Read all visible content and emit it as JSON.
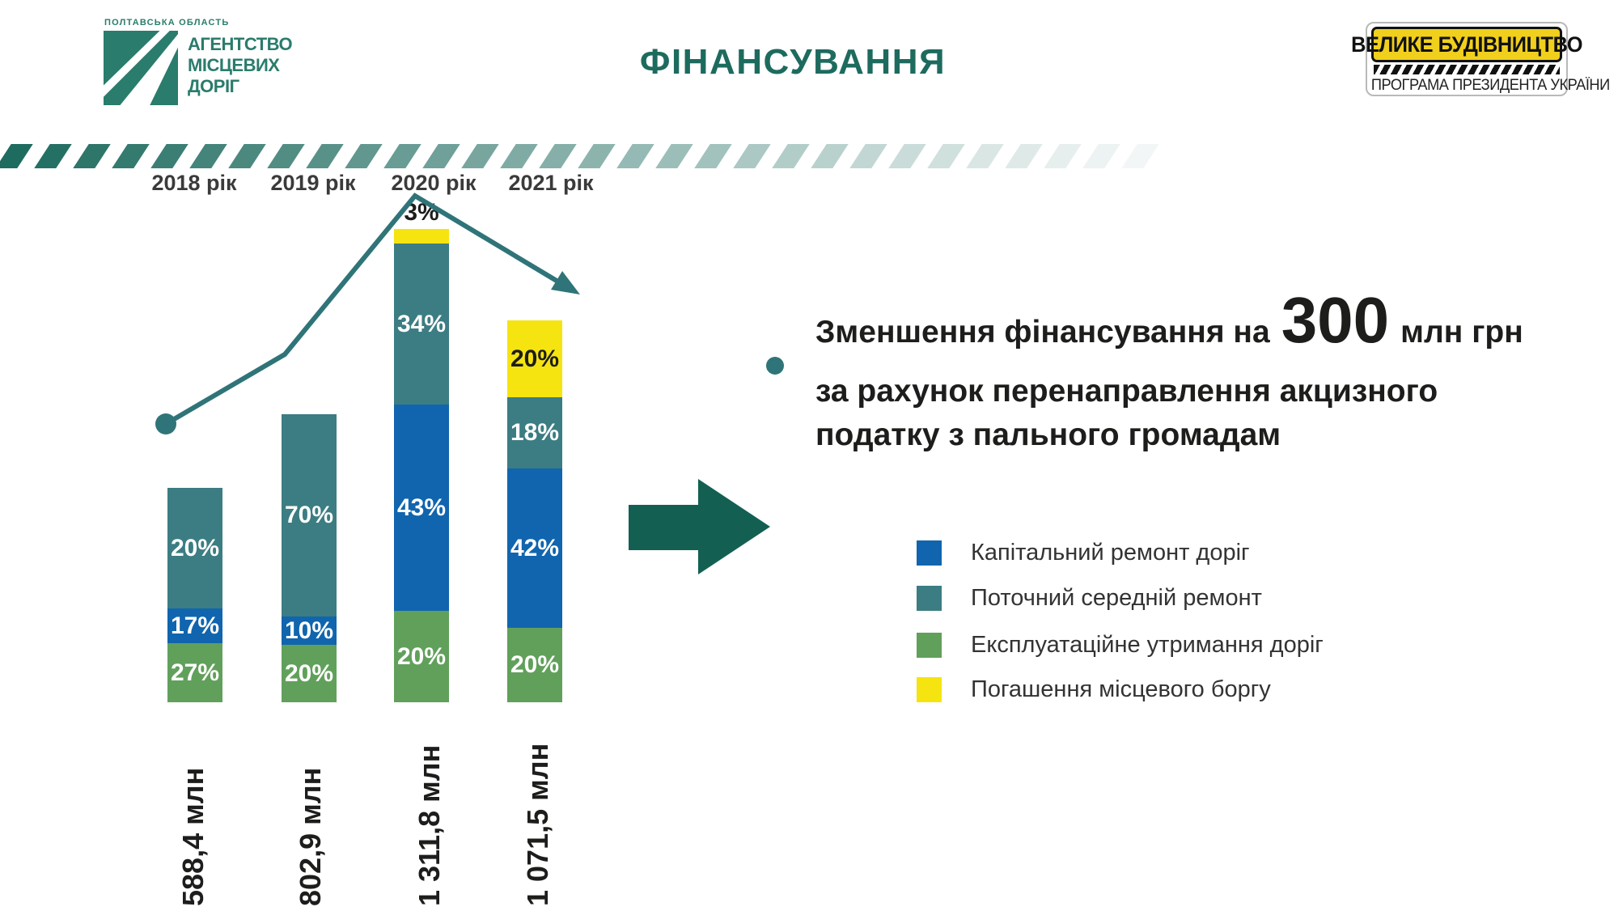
{
  "colors": {
    "title": "#1d6b5e",
    "logo": "#2a7c6c",
    "trend": "#2f7478",
    "arrow": "#136053",
    "stripe": "#1e6b5f",
    "badge_yellow": "#f0d01d"
  },
  "header": {
    "region_label": "ПОЛТАВСЬКА ОБЛАСТЬ",
    "agency_lines": [
      "АГЕНТСТВО",
      "МІСЦЕВИХ",
      "ДОРІГ"
    ],
    "title": "ФІНАНСУВАННЯ",
    "badge": {
      "title": "ВЕЛИКЕ БУДІВНИЦТВО",
      "subtitle": "ПРОГРАМА ПРЕЗИДЕНТА УКРАЇНИ"
    }
  },
  "callout": {
    "line1_before": "Зменшення фінансування на",
    "line1_big": "300",
    "line1_after": "млн грн",
    "line2": "за рахунок перенаправлення акцизного",
    "line3": "податку з пального громадам"
  },
  "legend_order": [
    "capital",
    "current",
    "exploitation",
    "debt"
  ],
  "chart_data": {
    "type": "bar",
    "variant": "stacked-percent",
    "unit": "%",
    "grid": false,
    "categories": [
      "2018 рік",
      "2019 рік",
      "2020 рік",
      "2021 рік"
    ],
    "totals_label": [
      "588,4 млн",
      "802,9 млн",
      "1 311,8 млн",
      "1 071,5 млн"
    ],
    "totals_mln_uah": [
      588.4,
      802.9,
      1311.8,
      1071.5
    ],
    "series": [
      {
        "key": "exploitation",
        "name": "Експлуатаційне утримання доріг",
        "color": "#61a05b",
        "values_pct": [
          27,
          20,
          20,
          20
        ]
      },
      {
        "key": "capital",
        "name": "Капітальний ремонт доріг",
        "color": "#1065ae",
        "values_pct": [
          17,
          10,
          43,
          42
        ]
      },
      {
        "key": "current",
        "name": "Поточний середній ремонт",
        "color": "#3b7d82",
        "values_pct": [
          20,
          70,
          34,
          18
        ]
      },
      {
        "key": "debt",
        "name": "Погашення місцевого боргу",
        "color": "#f6e411",
        "values_pct": [
          0,
          0,
          3,
          20
        ]
      }
    ],
    "bars": [
      {
        "category": "2018 рік",
        "total": "588,4 млн",
        "segments": [
          {
            "series": "exploitation",
            "label": "27%"
          },
          {
            "series": "capital",
            "label": "17%"
          },
          {
            "series": "current",
            "label": "20%"
          }
        ]
      },
      {
        "category": "2019 рік",
        "total": "802,9 млн",
        "segments": [
          {
            "series": "exploitation",
            "label": "20%"
          },
          {
            "series": "capital",
            "label": "10%"
          },
          {
            "series": "current",
            "label": "70%"
          }
        ]
      },
      {
        "category": "2020 рік",
        "total": "1 311,8 млн",
        "segments": [
          {
            "series": "exploitation",
            "label": "20%"
          },
          {
            "series": "capital",
            "label": "43%"
          },
          {
            "series": "current",
            "label": "34%"
          },
          {
            "series": "debt",
            "label": "3%",
            "label_outside": true
          }
        ]
      },
      {
        "category": "2021 рік",
        "total": "1 071,5 млн",
        "segments": [
          {
            "series": "exploitation",
            "label": "20%"
          },
          {
            "series": "capital",
            "label": "42%"
          },
          {
            "series": "current",
            "label": "18%"
          },
          {
            "series": "debt",
            "label": "20%"
          }
        ]
      }
    ],
    "trend": {
      "shape": "rise-then-fall",
      "start_category": "2018 рік",
      "peak_category": "2020 рік",
      "end_category": "2021 рік"
    }
  }
}
